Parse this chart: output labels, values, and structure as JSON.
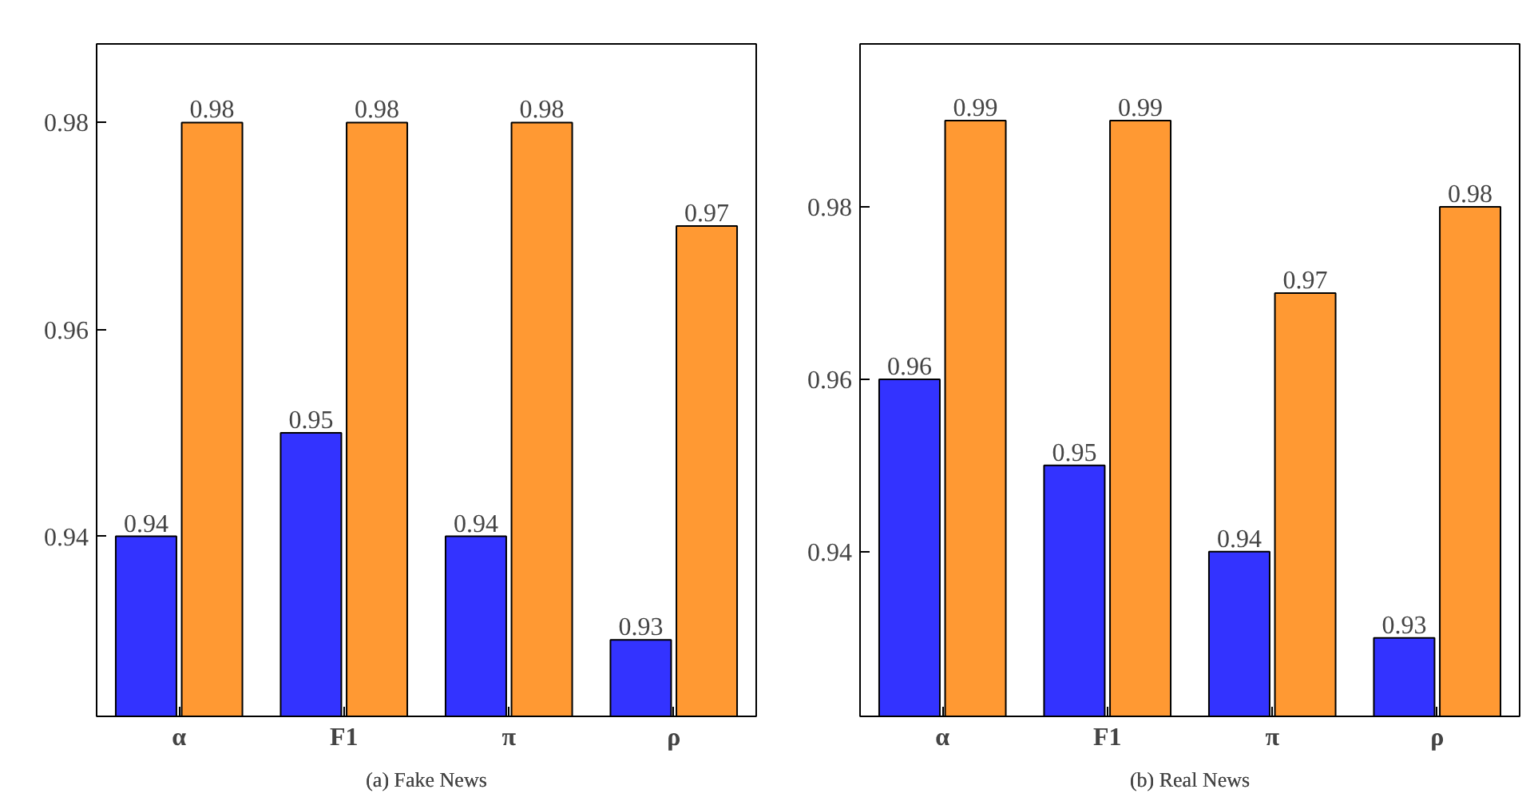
{
  "chart_data": [
    {
      "type": "bar",
      "title": "(a) Fake News",
      "categories": [
        "α",
        "F1",
        "π",
        "ρ"
      ],
      "series": [
        {
          "color": "#3333ff",
          "values": [
            0.94,
            0.95,
            0.94,
            0.93
          ]
        },
        {
          "color": "#ff9933",
          "values": [
            0.98,
            0.98,
            0.98,
            0.97
          ]
        }
      ],
      "ylim": [
        0.9226,
        0.9876
      ],
      "yticks": [
        0.94,
        0.96,
        0.98
      ],
      "data_labels": true,
      "grid": false
    },
    {
      "type": "bar",
      "title": "(b) Real News",
      "categories": [
        "α",
        "F1",
        "π",
        "ρ"
      ],
      "series": [
        {
          "color": "#3333ff",
          "values": [
            0.96,
            0.95,
            0.94,
            0.93
          ]
        },
        {
          "color": "#ff9933",
          "values": [
            0.99,
            0.99,
            0.97,
            0.98
          ]
        }
      ],
      "ylim": [
        0.9209,
        0.9989
      ],
      "yticks": [
        0.94,
        0.96,
        0.98
      ],
      "data_labels": true,
      "grid": false
    }
  ]
}
